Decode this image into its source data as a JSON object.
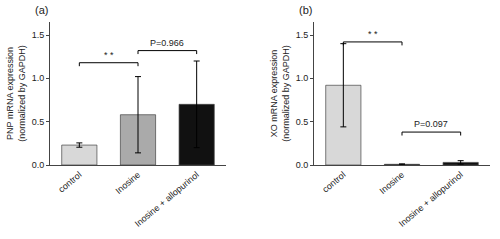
{
  "chart_data": [
    {
      "type": "bar",
      "title": "(a)",
      "ylabel": "PNP mRNA expression\n(normalized by GAPDH)",
      "categories": [
        "control",
        "Inosine",
        "Inosine + allopurinol"
      ],
      "values": [
        0.23,
        0.58,
        0.7
      ],
      "errors": [
        0.025,
        0.44,
        0.5
      ],
      "colors": [
        "#d8d8d8",
        "#aaaaaa",
        "#111111"
      ],
      "ylim": [
        0,
        1.65
      ],
      "yticks": [
        {
          "value": 0,
          "label": "0.0"
        },
        0.5,
        {
          "value": 1,
          "label": "1.0"
        },
        1.5
      ],
      "grid": false,
      "annotations": [
        {
          "text": "* *",
          "x1": 0,
          "x2": 1,
          "y": 1.18
        },
        {
          "text": "P=0.966",
          "x1": 1,
          "x2": 2,
          "y": 1.32
        }
      ]
    },
    {
      "type": "bar",
      "title": "(b)",
      "ylabel": "XO mRNA expression\n(normalized by GAPDH)",
      "categories": [
        "control",
        "Inosine",
        "Inosine + allopurinol"
      ],
      "values": [
        0.92,
        0.008,
        0.03
      ],
      "errors": [
        0.48,
        0.005,
        0.02
      ],
      "colors": [
        "#d8d8d8",
        "#111111",
        "#111111"
      ],
      "ylim": [
        0,
        1.65
      ],
      "yticks": [
        {
          "value": 0,
          "label": "0.0"
        },
        0.5,
        {
          "value": 1,
          "label": "1.0"
        },
        1.5
      ],
      "grid": false,
      "annotations": [
        {
          "text": "* *",
          "x1": 0,
          "x2": 1,
          "y": 1.42
        },
        {
          "text": "P=0.097",
          "x1": 1,
          "x2": 2,
          "y": 0.38
        }
      ]
    }
  ]
}
